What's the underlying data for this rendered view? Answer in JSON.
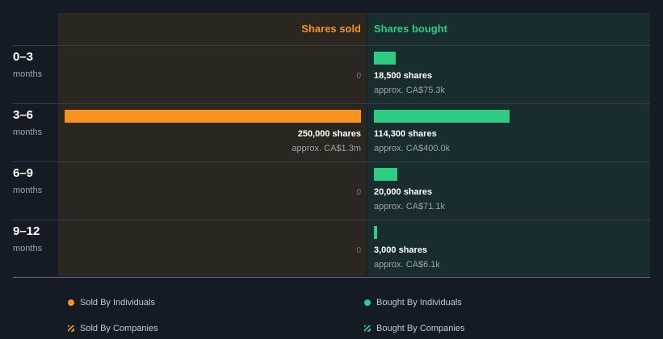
{
  "colors": {
    "sold": "#f7931e",
    "bought": "#2ecc83"
  },
  "chart_data": {
    "type": "bar",
    "orientation": "horizontal-diverging",
    "columns": {
      "sold": "Shares sold",
      "bought": "Shares bought"
    },
    "rows": [
      {
        "period": "0–3",
        "unit": "months",
        "sold": {
          "value": 0,
          "label": "0"
        },
        "bought": {
          "value": 18500,
          "shares": "18,500 shares",
          "approx": "approx. CA$75.3k"
        }
      },
      {
        "period": "3–6",
        "unit": "months",
        "sold": {
          "value": 250000,
          "shares": "250,000 shares",
          "approx": "approx. CA$1.3m"
        },
        "bought": {
          "value": 114300,
          "shares": "114,300 shares",
          "approx": "approx. CA$400.0k"
        }
      },
      {
        "period": "6–9",
        "unit": "months",
        "sold": {
          "value": 0,
          "label": "0"
        },
        "bought": {
          "value": 20000,
          "shares": "20,000 shares",
          "approx": "approx. CA$71.1k"
        }
      },
      {
        "period": "9–12",
        "unit": "months",
        "sold": {
          "value": 0,
          "label": "0"
        },
        "bought": {
          "value": 3000,
          "shares": "3,000 shares",
          "approx": "approx. CA$6.1k"
        }
      }
    ],
    "max_value": 250000,
    "legend": [
      {
        "label": "Sold By Individuals",
        "icon": "dot",
        "color": "#f7931e"
      },
      {
        "label": "Bought By Individuals",
        "icon": "dot",
        "color": "#2ecc83"
      },
      {
        "label": "Sold By Companies",
        "icon": "hatch",
        "color": "#f7931e"
      },
      {
        "label": "Bought By Companies",
        "icon": "hatch",
        "color": "#2ecc83"
      }
    ]
  }
}
